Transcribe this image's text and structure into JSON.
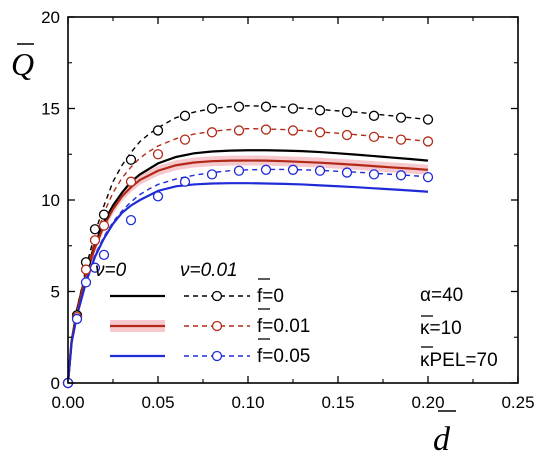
{
  "chart_data": {
    "type": "line",
    "xlabel": "d",
    "ylabel": "Q",
    "xlim": [
      0.0,
      0.25
    ],
    "ylim": [
      0,
      20
    ],
    "x_ticks": [
      "0.00",
      "0.05",
      "0.10",
      "0.15",
      "0.20",
      "0.25"
    ],
    "y_ticks": [
      "0",
      "5",
      "10",
      "15",
      "20"
    ],
    "grid": false,
    "legend": {
      "placement": "bottom-left",
      "col_headers": [
        "ν=0",
        "ν=0.01"
      ],
      "rows": [
        "f=0",
        "f=0.01",
        "f=0.05"
      ]
    },
    "params": [
      "α=40",
      "κ=10",
      "κPEL=70"
    ],
    "colors": {
      "black": "#000000",
      "red": "#b22a17",
      "blue": "#1f2bd6",
      "band": "#f6c9cf"
    },
    "series": [
      {
        "name": "ν=0, f=0",
        "color": "#000000",
        "style": "solid",
        "x": [
          0.0,
          0.002,
          0.005,
          0.01,
          0.015,
          0.02,
          0.025,
          0.03,
          0.035,
          0.04,
          0.05,
          0.06,
          0.07,
          0.08,
          0.09,
          0.1,
          0.11,
          0.12,
          0.13,
          0.14,
          0.15,
          0.16,
          0.17,
          0.18,
          0.19,
          0.2
        ],
        "y": [
          0.0,
          2.3,
          4.0,
          6.0,
          7.6,
          8.8,
          9.7,
          10.4,
          11.0,
          11.4,
          12.0,
          12.35,
          12.55,
          12.65,
          12.7,
          12.72,
          12.72,
          12.7,
          12.67,
          12.62,
          12.55,
          12.48,
          12.4,
          12.32,
          12.24,
          12.15
        ]
      },
      {
        "name": "ν=0, f=0.01",
        "color": "#b22a17",
        "style": "solid",
        "x": [
          0.0,
          0.002,
          0.005,
          0.01,
          0.015,
          0.02,
          0.025,
          0.03,
          0.035,
          0.04,
          0.05,
          0.06,
          0.07,
          0.08,
          0.09,
          0.1,
          0.11,
          0.12,
          0.13,
          0.14,
          0.15,
          0.16,
          0.17,
          0.18,
          0.19,
          0.2
        ],
        "y": [
          0.0,
          2.3,
          3.9,
          5.9,
          7.4,
          8.6,
          9.5,
          10.2,
          10.7,
          11.1,
          11.6,
          11.9,
          12.05,
          12.12,
          12.15,
          12.16,
          12.15,
          12.12,
          12.08,
          12.04,
          11.98,
          11.92,
          11.85,
          11.78,
          11.72,
          11.65
        ]
      },
      {
        "name": "ν=0, f=0.05",
        "color": "#1f2bd6",
        "style": "solid",
        "x": [
          0.0,
          0.002,
          0.005,
          0.01,
          0.015,
          0.02,
          0.025,
          0.03,
          0.035,
          0.04,
          0.05,
          0.06,
          0.07,
          0.08,
          0.09,
          0.1,
          0.11,
          0.12,
          0.13,
          0.14,
          0.15,
          0.16,
          0.17,
          0.18,
          0.19,
          0.2
        ],
        "y": [
          0.0,
          2.2,
          3.7,
          5.5,
          6.9,
          7.9,
          8.7,
          9.3,
          9.7,
          10.0,
          10.5,
          10.75,
          10.85,
          10.9,
          10.92,
          10.92,
          10.9,
          10.88,
          10.85,
          10.8,
          10.75,
          10.7,
          10.64,
          10.58,
          10.52,
          10.45
        ]
      },
      {
        "name": "ν=0.01, f=0",
        "color": "#000000",
        "style": "dashed",
        "x": [
          0.0,
          0.002,
          0.005,
          0.01,
          0.015,
          0.02,
          0.025,
          0.03,
          0.035,
          0.04,
          0.045,
          0.05,
          0.06,
          0.07,
          0.08,
          0.09,
          0.1,
          0.11,
          0.12,
          0.13,
          0.14,
          0.15,
          0.16,
          0.17,
          0.18,
          0.19,
          0.2
        ],
        "y": [
          0.0,
          2.3,
          4.0,
          6.3,
          8.2,
          9.7,
          11.0,
          11.9,
          12.6,
          13.2,
          13.6,
          13.95,
          14.5,
          14.8,
          15.0,
          15.1,
          15.15,
          15.12,
          15.08,
          15.02,
          14.95,
          14.87,
          14.8,
          14.7,
          14.6,
          14.5,
          14.4
        ]
      },
      {
        "name": "ν=0.01, f=0.01",
        "color": "#b22a17",
        "style": "dashed",
        "x": [
          0.0,
          0.002,
          0.005,
          0.01,
          0.015,
          0.02,
          0.025,
          0.03,
          0.035,
          0.04,
          0.045,
          0.05,
          0.06,
          0.07,
          0.08,
          0.09,
          0.1,
          0.11,
          0.12,
          0.13,
          0.14,
          0.15,
          0.16,
          0.17,
          0.18,
          0.19,
          0.2
        ],
        "y": [
          0.0,
          2.3,
          3.9,
          6.1,
          7.8,
          9.3,
          10.4,
          11.2,
          11.8,
          12.3,
          12.65,
          12.95,
          13.35,
          13.6,
          13.75,
          13.85,
          13.9,
          13.88,
          13.85,
          13.8,
          13.72,
          13.65,
          13.57,
          13.48,
          13.4,
          13.3,
          13.2
        ]
      },
      {
        "name": "ν=0.01, f=0.05",
        "color": "#1f2bd6",
        "style": "dashed",
        "x": [
          0.0,
          0.002,
          0.005,
          0.01,
          0.015,
          0.02,
          0.025,
          0.03,
          0.035,
          0.04,
          0.045,
          0.05,
          0.06,
          0.07,
          0.08,
          0.09,
          0.1,
          0.11,
          0.12,
          0.13,
          0.14,
          0.15,
          0.16,
          0.17,
          0.18,
          0.19,
          0.2
        ],
        "y": [
          0.0,
          2.2,
          3.7,
          5.6,
          7.0,
          8.0,
          8.8,
          9.4,
          9.9,
          10.3,
          10.6,
          10.85,
          11.15,
          11.35,
          11.5,
          11.6,
          11.65,
          11.67,
          11.67,
          11.65,
          11.62,
          11.57,
          11.52,
          11.46,
          11.4,
          11.34,
          11.27
        ]
      }
    ],
    "markers": [
      {
        "series": 3,
        "x": [
          0.0,
          0.005,
          0.01,
          0.015,
          0.02,
          0.035,
          0.05,
          0.065,
          0.08,
          0.095,
          0.11,
          0.125,
          0.14,
          0.155,
          0.17,
          0.185,
          0.2
        ],
        "y": [
          0.0,
          3.7,
          6.6,
          8.4,
          9.2,
          12.2,
          13.8,
          14.6,
          15.0,
          15.1,
          15.1,
          15.0,
          14.9,
          14.8,
          14.6,
          14.5,
          14.4
        ]
      },
      {
        "series": 4,
        "x": [
          0.0,
          0.005,
          0.01,
          0.015,
          0.02,
          0.035,
          0.05,
          0.065,
          0.08,
          0.095,
          0.11,
          0.125,
          0.14,
          0.155,
          0.17,
          0.185,
          0.2
        ],
        "y": [
          0.0,
          3.6,
          6.2,
          7.8,
          8.6,
          11.0,
          12.5,
          13.3,
          13.7,
          13.8,
          13.85,
          13.8,
          13.7,
          13.55,
          13.45,
          13.3,
          13.2
        ]
      },
      {
        "series": 5,
        "x": [
          0.0,
          0.005,
          0.01,
          0.015,
          0.02,
          0.035,
          0.05,
          0.065,
          0.08,
          0.095,
          0.11,
          0.125,
          0.14,
          0.155,
          0.17,
          0.185,
          0.2
        ],
        "y": [
          0.0,
          3.5,
          5.5,
          6.3,
          7.0,
          8.9,
          10.2,
          11.0,
          11.4,
          11.6,
          11.65,
          11.65,
          11.6,
          11.5,
          11.4,
          11.35,
          11.25
        ]
      }
    ]
  }
}
